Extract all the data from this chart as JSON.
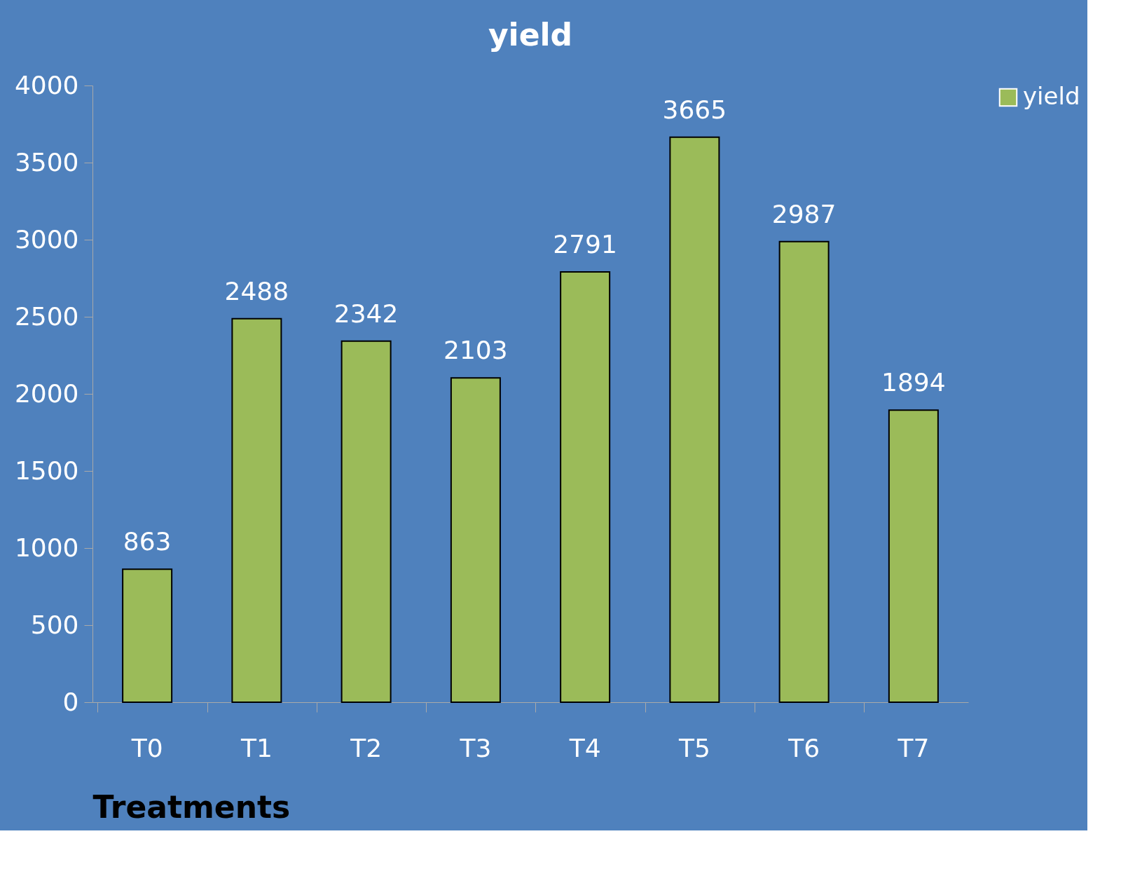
{
  "chart_data": {
    "type": "bar",
    "title": "yield",
    "xlabel": "Treatments",
    "categories": [
      "T0",
      "T1",
      "T2",
      "T3",
      "T4",
      "T5",
      "T6",
      "T7"
    ],
    "series": [
      {
        "name": "yield",
        "color": "#9bbb59",
        "values": [
          863,
          2488,
          2342,
          2103,
          2791,
          3665,
          2987,
          1894
        ]
      }
    ],
    "ylim": [
      0,
      4000
    ],
    "yticks": [
      0,
      500,
      1000,
      1500,
      2000,
      2500,
      3000,
      3500,
      4000
    ],
    "data_labels": true,
    "grid": false,
    "legend": "right"
  }
}
